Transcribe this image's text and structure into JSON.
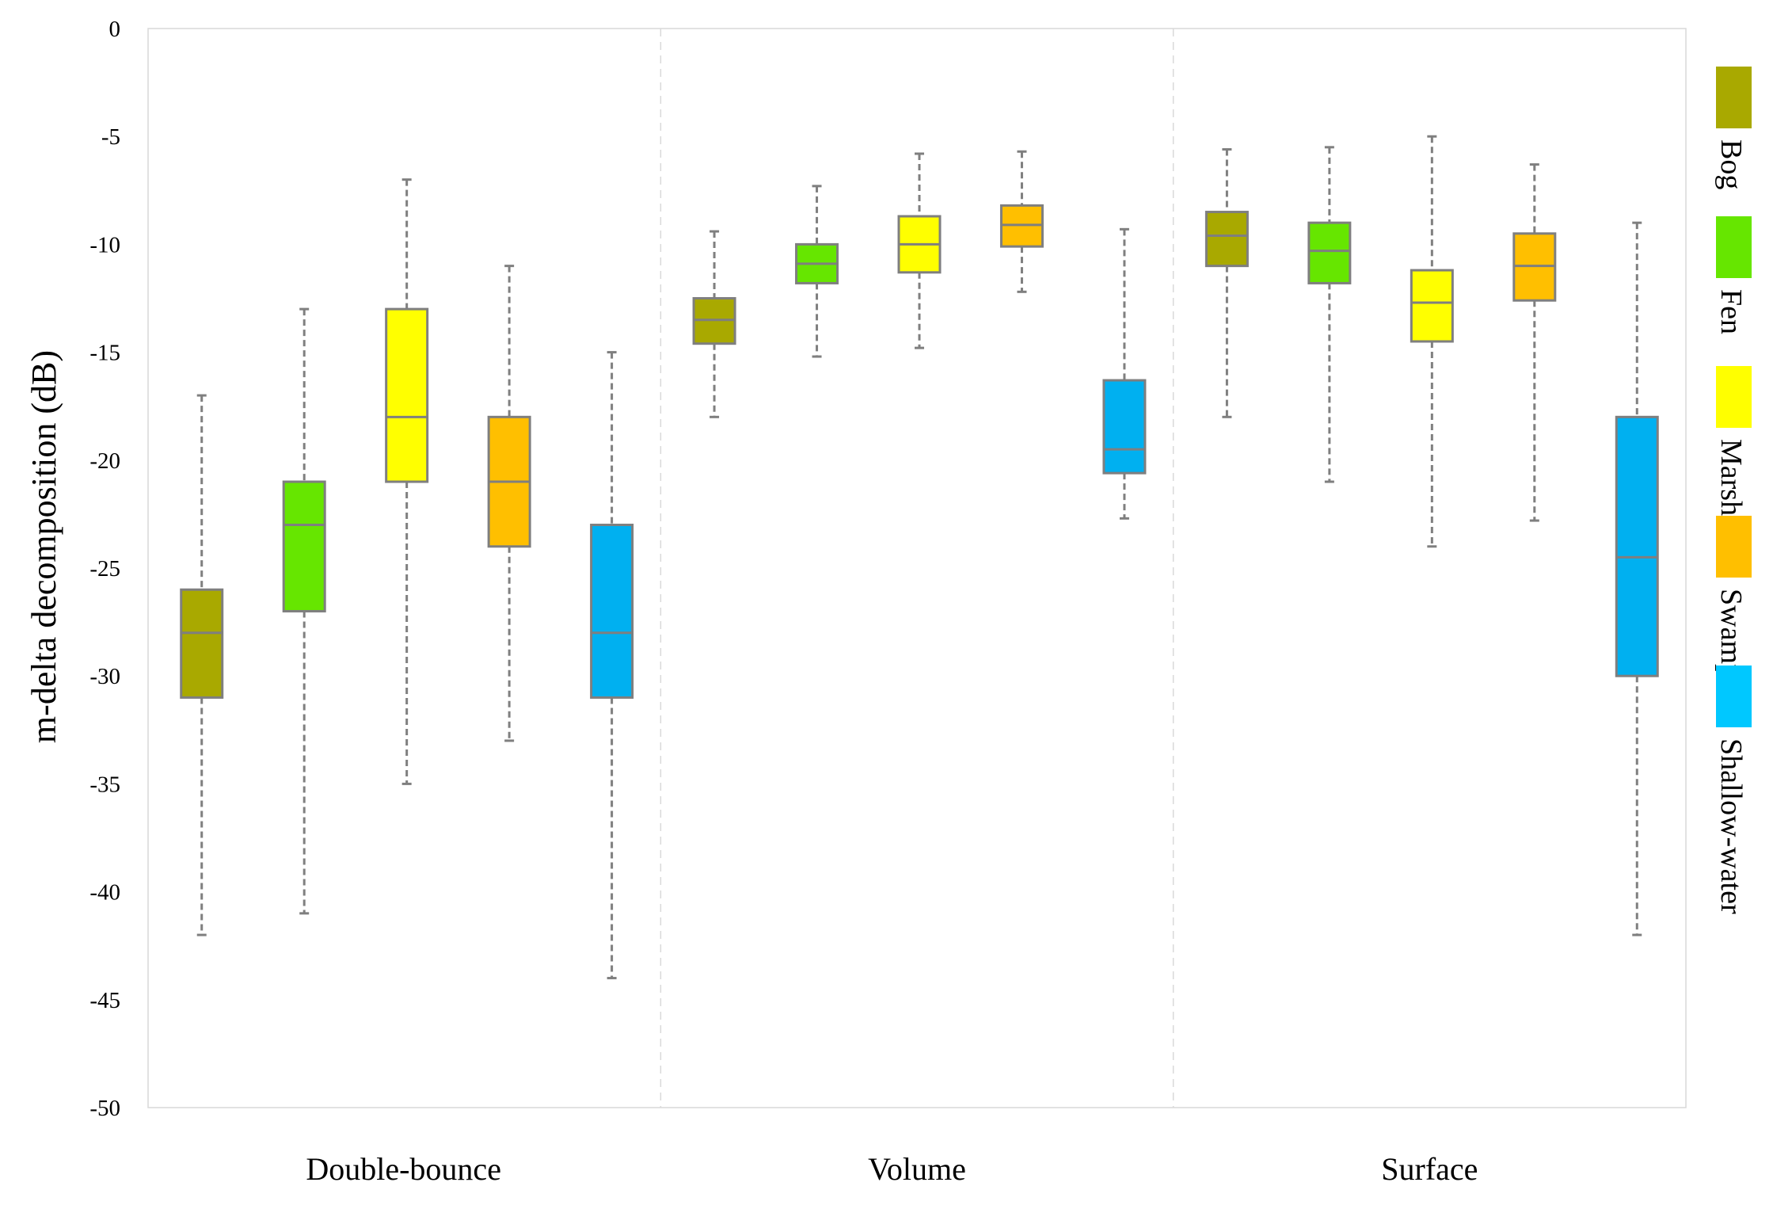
{
  "chart_data": {
    "type": "boxplot",
    "title": "",
    "xlabel": "",
    "ylabel": "m-delta decomposition (dB)",
    "ylim": [
      -50,
      0
    ],
    "yticks": [
      0,
      -5,
      -10,
      -15,
      -20,
      -25,
      -30,
      -35,
      -40,
      -45,
      -50
    ],
    "ytick_labels": [
      "0",
      "-5",
      "-10",
      "-15",
      "-20",
      "-25",
      "-30",
      "-35",
      "-40",
      "-45",
      "-50"
    ],
    "categories": [
      "Double-bounce",
      "Volume",
      "Surface"
    ],
    "grid": false,
    "legend_position": "right",
    "series": [
      {
        "name": "Bog",
        "color": "#a9a900",
        "boxes": [
          {
            "min": -42,
            "q1": -31,
            "median": -28,
            "q3": -26,
            "max": -17
          },
          {
            "min": -18,
            "q1": -14.6,
            "median": -13.5,
            "q3": -12.5,
            "max": -9.4
          },
          {
            "min": -18,
            "q1": -11,
            "median": -9.6,
            "q3": -8.5,
            "max": -5.6
          }
        ]
      },
      {
        "name": "Fen",
        "color": "#66e600",
        "boxes": [
          {
            "min": -41,
            "q1": -27,
            "median": -23,
            "q3": -21,
            "max": -13
          },
          {
            "min": -15.2,
            "q1": -11.8,
            "median": -10.9,
            "q3": -10,
            "max": -7.3
          },
          {
            "min": -21,
            "q1": -11.8,
            "median": -10.3,
            "q3": -9,
            "max": -5.5
          }
        ]
      },
      {
        "name": "Marsh",
        "color": "#ffff00",
        "boxes": [
          {
            "min": -35,
            "q1": -21,
            "median": -18,
            "q3": -13,
            "max": -7
          },
          {
            "min": -14.8,
            "q1": -11.3,
            "median": -10,
            "q3": -8.7,
            "max": -5.8
          },
          {
            "min": -24,
            "q1": -14.5,
            "median": -12.7,
            "q3": -11.2,
            "max": -5
          }
        ]
      },
      {
        "name": "Swamp",
        "color": "#ffbf00",
        "boxes": [
          {
            "min": -33,
            "q1": -24,
            "median": -21,
            "q3": -18,
            "max": -11
          },
          {
            "min": -12.2,
            "q1": -10.1,
            "median": -9.1,
            "q3": -8.2,
            "max": -5.7
          },
          {
            "min": -22.8,
            "q1": -12.6,
            "median": -11,
            "q3": -9.5,
            "max": -6.3
          }
        ]
      },
      {
        "name": "Shallow-water",
        "color": "#00b0f0",
        "legend_color": "#00c8ff",
        "boxes": [
          {
            "min": -44,
            "q1": -31,
            "median": -28,
            "q3": -23,
            "max": -15
          },
          {
            "min": -22.7,
            "q1": -20.6,
            "median": -19.5,
            "q3": -16.3,
            "max": -9.3
          },
          {
            "min": -42,
            "q1": -30,
            "median": -24.5,
            "q3": -18,
            "max": -9
          }
        ]
      }
    ]
  }
}
